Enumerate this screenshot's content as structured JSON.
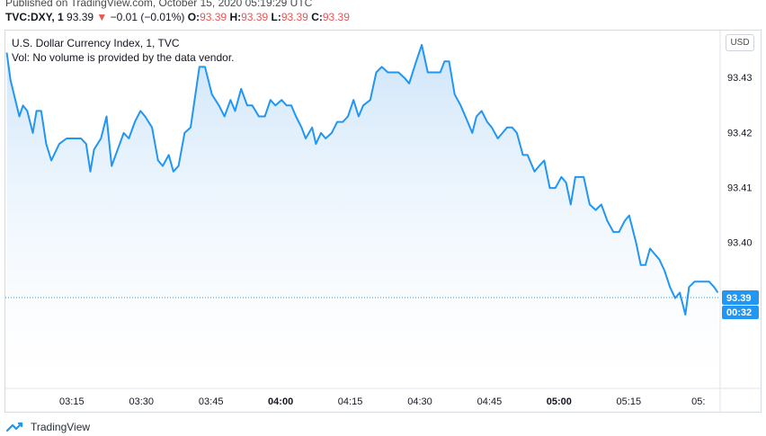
{
  "header": {
    "published": "Published on TradingView.com, October 15, 2020 05:19:29 UTC",
    "symbol": "TVC:DXY, 1",
    "last": "93.39",
    "arrow": "▼",
    "change": "−0.01 (−0.01%)",
    "o_label": "O:",
    "o_value": "93.39",
    "h_label": "H:",
    "h_value": "93.39",
    "l_label": "L:",
    "l_value": "93.39",
    "c_label": "C:",
    "c_value": "93.39"
  },
  "legend": {
    "title": "U.S. Dollar Currency Index, 1, TVC",
    "volume_note": "Vol: No volume is provided by the data vendor."
  },
  "currency_button": "USD",
  "price_badge": {
    "price": "93.39",
    "countdown": "00:32"
  },
  "footer": {
    "brand": "TradingView"
  },
  "colors": {
    "line": "#2196f3",
    "fill_top": "#c9e2f9",
    "badge": "#2196f3",
    "down": "#ef5350"
  },
  "chart_data": {
    "type": "area",
    "y_ticks": [
      "93.43",
      "93.42",
      "93.41",
      "93.40"
    ],
    "y_tick_values": [
      93.43,
      93.42,
      93.41,
      93.4
    ],
    "x_ticks": [
      "03:15",
      "03:30",
      "03:45",
      "04:00",
      "04:15",
      "04:30",
      "04:45",
      "05:00",
      "05:15",
      "05:"
    ],
    "x_tick_bold": [
      false,
      false,
      false,
      true,
      false,
      false,
      false,
      true,
      false,
      false
    ],
    "x_tick_minutes": [
      195,
      210,
      225,
      240,
      255,
      270,
      285,
      300,
      315,
      330
    ],
    "ylim": [
      93.3735,
      93.4385
    ],
    "xlim": [
      180.7,
      334.7
    ],
    "last_value": 93.39,
    "series": [
      {
        "values": [
          [
            181.0,
            93.4345
          ],
          [
            181.8,
            93.4295
          ],
          [
            183.7,
            93.4229
          ],
          [
            184.5,
            93.4249
          ],
          [
            185.4,
            93.4239
          ],
          [
            186.6,
            93.4199
          ],
          [
            187.4,
            93.4239
          ],
          [
            188.4,
            93.4239
          ],
          [
            189.5,
            93.4179
          ],
          [
            190.6,
            93.4149
          ],
          [
            192.3,
            93.4179
          ],
          [
            193.9,
            93.4189
          ],
          [
            195.0,
            93.4189
          ],
          [
            195.7,
            93.4189
          ],
          [
            197.0,
            93.4189
          ],
          [
            198.1,
            93.4179
          ],
          [
            199.0,
            93.4129
          ],
          [
            199.8,
            93.4169
          ],
          [
            201.3,
            93.4189
          ],
          [
            202.5,
            93.4229
          ],
          [
            203.6,
            93.4139
          ],
          [
            204.9,
            93.4169
          ],
          [
            206.2,
            93.4199
          ],
          [
            207.3,
            93.4189
          ],
          [
            208.6,
            93.4219
          ],
          [
            209.8,
            93.4239
          ],
          [
            210.8,
            93.4229
          ],
          [
            212.3,
            93.4209
          ],
          [
            213.6,
            93.4149
          ],
          [
            214.6,
            93.4139
          ],
          [
            215.9,
            93.4159
          ],
          [
            216.9,
            93.4129
          ],
          [
            218.0,
            93.4139
          ],
          [
            219.3,
            93.4199
          ],
          [
            220.6,
            93.4209
          ],
          [
            222.5,
            93.4319
          ],
          [
            223.7,
            93.4319
          ],
          [
            225.2,
            93.4269
          ],
          [
            226.7,
            93.4249
          ],
          [
            227.9,
            93.4229
          ],
          [
            229.2,
            93.4259
          ],
          [
            230.2,
            93.4239
          ],
          [
            231.5,
            93.4279
          ],
          [
            232.8,
            93.4249
          ],
          [
            233.9,
            93.4249
          ],
          [
            235.3,
            93.4229
          ],
          [
            236.6,
            93.4229
          ],
          [
            237.8,
            93.4259
          ],
          [
            238.9,
            93.4249
          ],
          [
            240.2,
            93.4259
          ],
          [
            241.3,
            93.4249
          ],
          [
            242.3,
            93.4249
          ],
          [
            243.3,
            93.4229
          ],
          [
            244.5,
            93.4209
          ],
          [
            245.4,
            93.4189
          ],
          [
            246.8,
            93.4209
          ],
          [
            247.6,
            93.4179
          ],
          [
            248.7,
            93.4199
          ],
          [
            249.7,
            93.4189
          ],
          [
            251.0,
            93.4199
          ],
          [
            252.2,
            93.4219
          ],
          [
            253.4,
            93.4219
          ],
          [
            254.5,
            93.4229
          ],
          [
            255.7,
            93.4259
          ],
          [
            256.8,
            93.4229
          ],
          [
            257.8,
            93.4249
          ],
          [
            259.3,
            93.4259
          ],
          [
            260.6,
            93.4309
          ],
          [
            261.8,
            93.4319
          ],
          [
            263.1,
            93.4309
          ],
          [
            264.4,
            93.4309
          ],
          [
            265.4,
            93.4309
          ],
          [
            266.7,
            93.4299
          ],
          [
            267.7,
            93.4289
          ],
          [
            269.2,
            93.4329
          ],
          [
            270.4,
            93.4359
          ],
          [
            271.7,
            93.4309
          ],
          [
            273.0,
            93.4309
          ],
          [
            274.4,
            93.4309
          ],
          [
            275.3,
            93.4329
          ],
          [
            276.3,
            93.4329
          ],
          [
            277.5,
            93.4269
          ],
          [
            278.8,
            93.4249
          ],
          [
            280.3,
            93.4219
          ],
          [
            281.3,
            93.4199
          ],
          [
            282.2,
            93.4229
          ],
          [
            283.3,
            93.4239
          ],
          [
            284.5,
            93.4219
          ],
          [
            285.5,
            93.4209
          ],
          [
            286.8,
            93.4189
          ],
          [
            287.8,
            93.4199
          ],
          [
            288.8,
            93.4209
          ],
          [
            289.9,
            93.4209
          ],
          [
            290.9,
            93.4199
          ],
          [
            292.2,
            93.4159
          ],
          [
            293.2,
            93.4159
          ],
          [
            294.7,
            93.4129
          ],
          [
            295.7,
            93.4139
          ],
          [
            296.8,
            93.4149
          ],
          [
            298.0,
            93.4099
          ],
          [
            299.2,
            93.4099
          ],
          [
            300.5,
            93.4119
          ],
          [
            301.5,
            93.4109
          ],
          [
            302.5,
            93.4069
          ],
          [
            303.5,
            93.4119
          ],
          [
            304.3,
            93.4119
          ],
          [
            305.3,
            93.4119
          ],
          [
            306.6,
            93.4069
          ],
          [
            307.9,
            93.4059
          ],
          [
            309.1,
            93.4069
          ],
          [
            310.4,
            93.4039
          ],
          [
            311.7,
            93.4019
          ],
          [
            312.9,
            93.4019
          ],
          [
            314.1,
            93.4039
          ],
          [
            315.1,
            93.4049
          ],
          [
            316.6,
            93.3999
          ],
          [
            317.6,
            93.3959
          ],
          [
            318.6,
            93.3959
          ],
          [
            319.6,
            93.3989
          ],
          [
            320.6,
            93.3979
          ],
          [
            321.6,
            93.3969
          ],
          [
            322.7,
            93.3949
          ],
          [
            323.9,
            93.3919
          ],
          [
            325.0,
            93.3899
          ],
          [
            326.0,
            93.3909
          ],
          [
            327.2,
            93.3869
          ],
          [
            328.0,
            93.3919
          ],
          [
            329.2,
            93.3929
          ],
          [
            330.3,
            93.3929
          ],
          [
            331.2,
            93.3929
          ],
          [
            332.3,
            93.3929
          ],
          [
            333.4,
            93.3919
          ],
          [
            334.2,
            93.3909
          ]
        ]
      }
    ]
  }
}
